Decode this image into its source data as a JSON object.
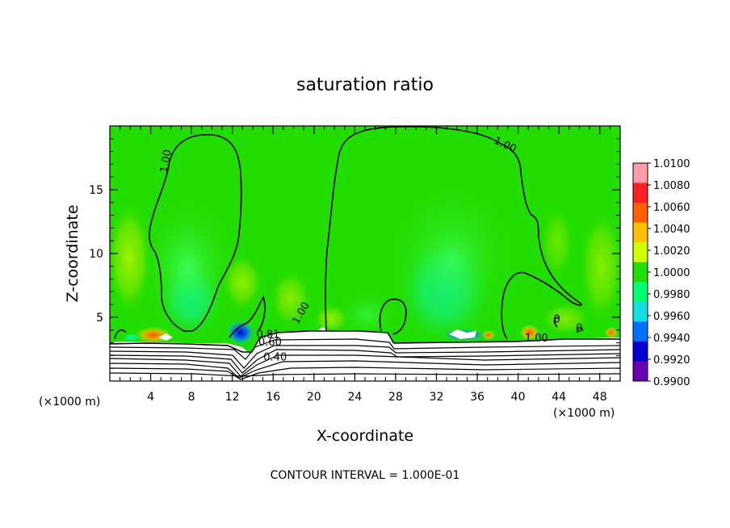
{
  "chart_data": {
    "type": "heatmap",
    "title": "saturation ratio",
    "xlabel": "X-coordinate",
    "ylabel": "Z-coordinate",
    "x_unit": "(×1000 m)",
    "x_unit_right": "(×1000 m)",
    "xlim": [
      0,
      50
    ],
    "ylim": [
      0,
      20
    ],
    "x_ticks": [
      "4",
      "8",
      "12",
      "16",
      "20",
      "24",
      "28",
      "32",
      "36",
      "40",
      "44",
      "48"
    ],
    "x_tick_values": [
      4,
      8,
      12,
      16,
      20,
      24,
      28,
      32,
      36,
      40,
      44,
      48
    ],
    "y_ticks": [
      "5",
      "10",
      "15"
    ],
    "y_tick_values": [
      5,
      10,
      15
    ],
    "footer": "CONTOUR INTERVAL = 1.000E-01",
    "colorbar": {
      "labels": [
        "1.0100",
        "1.0080",
        "1.0060",
        "1.0040",
        "1.0020",
        "1.0000",
        "0.9980",
        "0.9960",
        "0.9940",
        "0.9920",
        "0.9900"
      ],
      "colors": [
        "#ff9aa8",
        "#ff2020",
        "#ff6000",
        "#ffc000",
        "#d0ff00",
        "#22dd00",
        "#00ff70",
        "#10e0e0",
        "#0070ff",
        "#0000d0",
        "#6a00b0"
      ]
    },
    "background_color": "#22dd00",
    "contour_labels": [
      {
        "text": "1.00",
        "x": 5.8,
        "z": 17.2,
        "rot": -80
      },
      {
        "text": "1.00",
        "x": 38.6,
        "z": 18.3,
        "rot": 25
      },
      {
        "text": "1.00",
        "x": 19.0,
        "z": 5.2,
        "rot": -60
      },
      {
        "text": "1.00",
        "x": 41.8,
        "z": 3.1,
        "rot": 0
      },
      {
        "text": "0",
        "x": 43.8,
        "z": 4.6,
        "rot": 0
      },
      {
        "text": "0",
        "x": 46.0,
        "z": 3.9,
        "rot": 0
      },
      {
        "text": "0.81",
        "x": 15.5,
        "z": 3.4,
        "rot": 0
      },
      {
        "text": "0.60",
        "x": 15.7,
        "z": 2.8,
        "rot": 0
      },
      {
        "text": "0.40",
        "x": 16.2,
        "z": 1.6,
        "rot": 0
      }
    ]
  }
}
